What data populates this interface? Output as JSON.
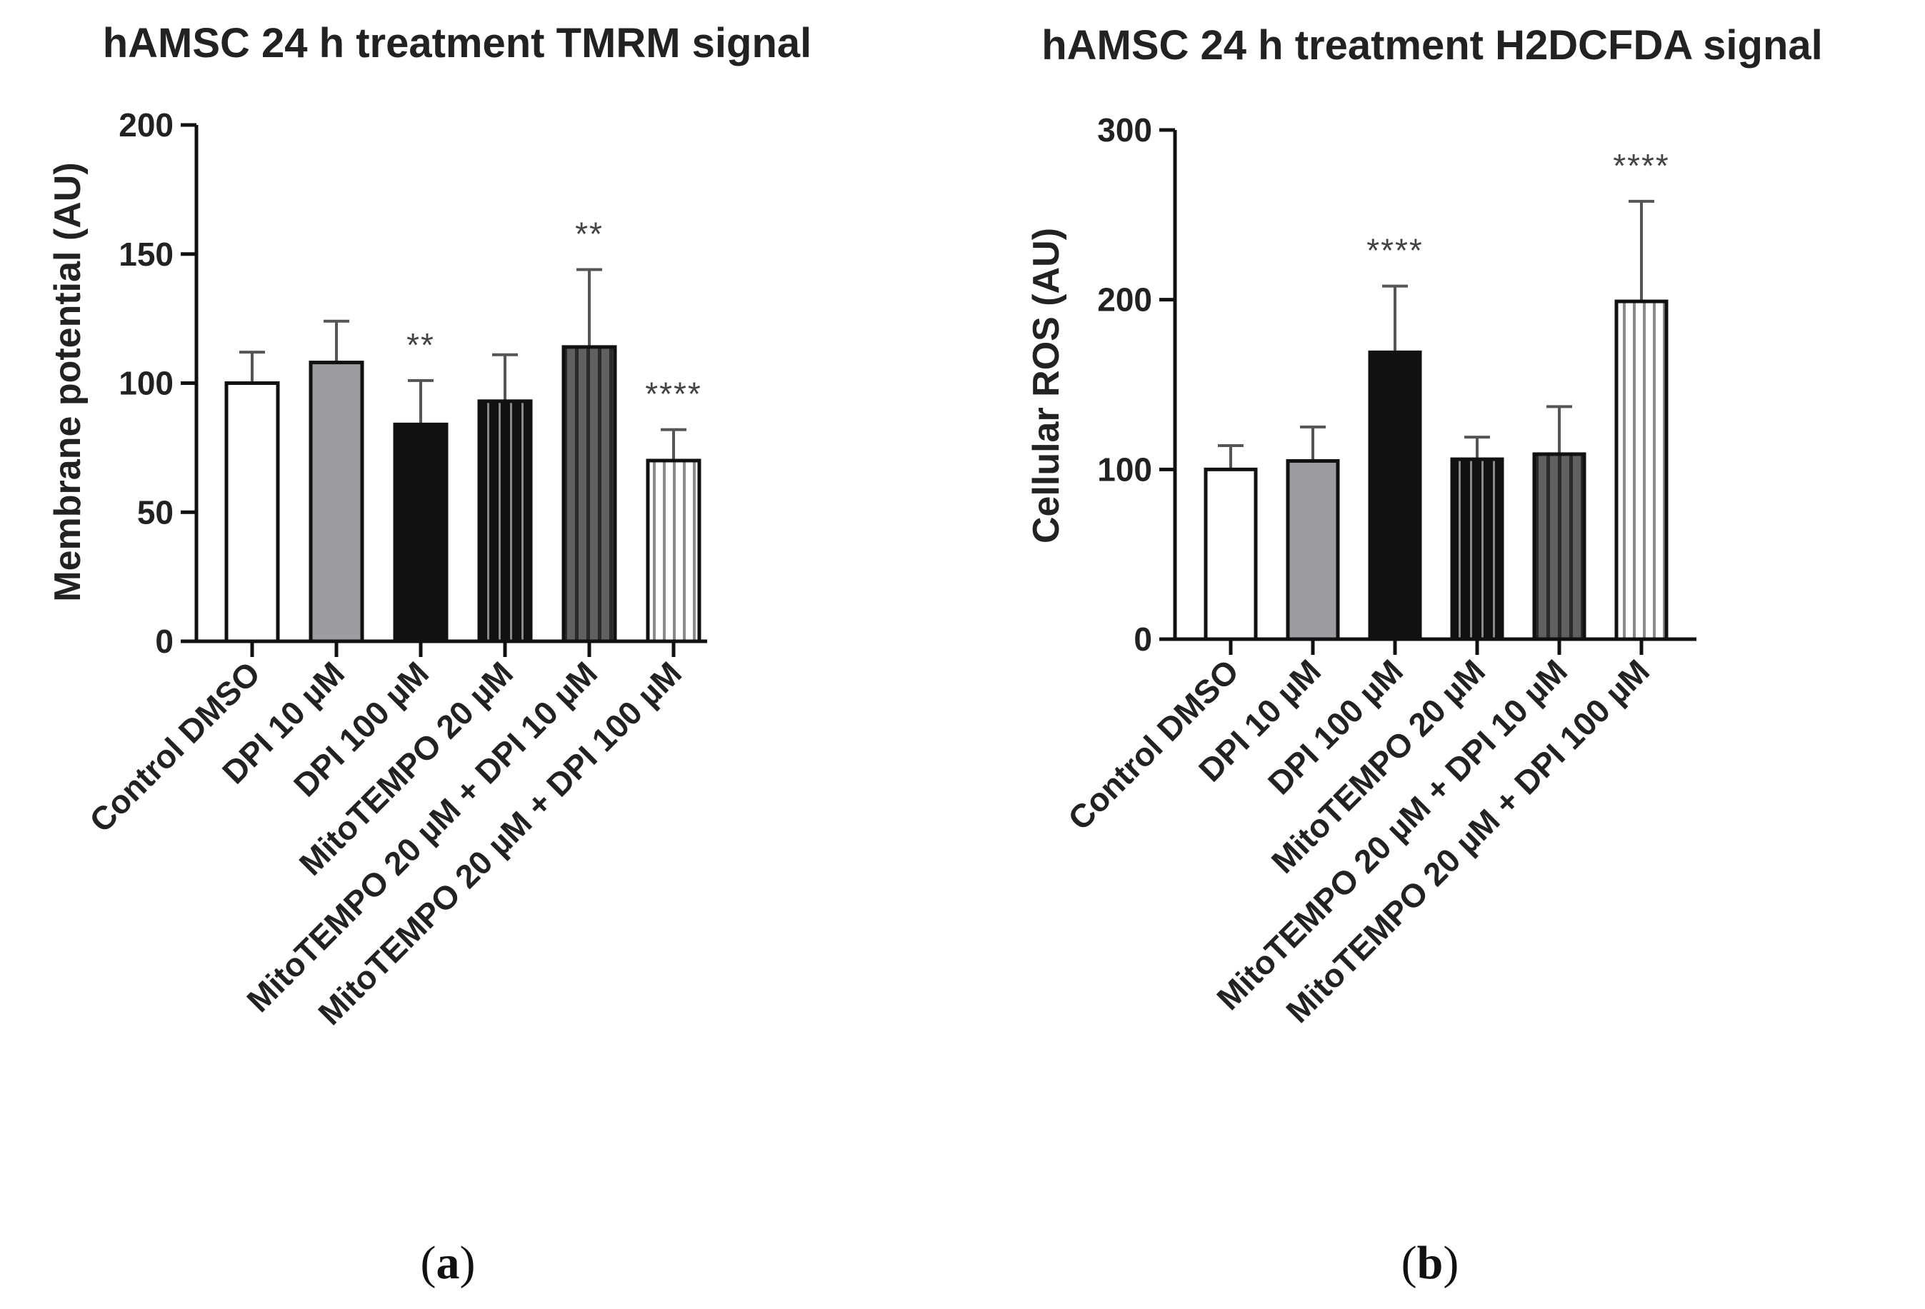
{
  "chart_data": [
    {
      "type": "bar",
      "title": "hAMSC 24 h treatment TMRM signal",
      "xlabel": "",
      "ylabel": "Membrane potential (AU)",
      "ylim": [
        0,
        200
      ],
      "yticks": [
        0,
        50,
        100,
        150,
        200
      ],
      "categories": [
        "Control DMSO",
        "DPI 10 µM",
        "DPI 100 µM",
        "MitoTEMPO 20 µM",
        "MitoTEMPO 20 µM + DPI 10 µM",
        "MitoTEMPO 20 µM + DPI 100 µM"
      ],
      "values": [
        100,
        108,
        84,
        93,
        114,
        70
      ],
      "errors": [
        12,
        16,
        17,
        18,
        30,
        12
      ],
      "significance": [
        "",
        "",
        "**",
        "",
        "**",
        "****"
      ],
      "fills": [
        "white",
        "gray",
        "black",
        "black-stripes",
        "gray-stripes",
        "white-stripes"
      ],
      "panel_label": "a"
    },
    {
      "type": "bar",
      "title": "hAMSC 24 h treatment H2DCFDA signal",
      "xlabel": "",
      "ylabel": "Cellular ROS (AU)",
      "ylim": [
        0,
        300
      ],
      "yticks": [
        0,
        100,
        200,
        300
      ],
      "categories": [
        "Control DMSO",
        "DPI 10 µM",
        "DPI 100 µM",
        "MitoTEMPO 20 µM",
        "MitoTEMPO 20 µM + DPI 10 µM",
        "MitoTEMPO 20 µM + DPI 100 µM"
      ],
      "values": [
        100,
        105,
        169,
        106,
        109,
        199
      ],
      "errors": [
        14,
        20,
        39,
        13,
        28,
        59
      ],
      "significance": [
        "",
        "",
        "****",
        "",
        "",
        "****"
      ],
      "fills": [
        "white",
        "gray",
        "black",
        "black-stripes",
        "gray-stripes",
        "white-stripes"
      ],
      "panel_label": "b"
    }
  ],
  "colors": {
    "axis": "#111111",
    "text": "#222222",
    "gray_bar": "#9c9ca1",
    "stripe_dark": "#2a2a2a",
    "stripe_gray": "#7a7a7a"
  }
}
